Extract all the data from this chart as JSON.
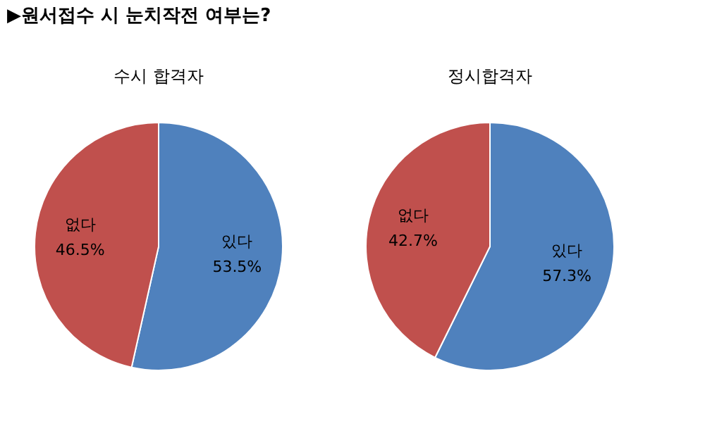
{
  "chart_data": [
    {
      "type": "pie",
      "title": "수시 합격자",
      "annotations": [
        "▶원서접수 시 눈치작전 여부는?"
      ],
      "categories": [
        "있다",
        "없다"
      ],
      "values": [
        53.5,
        46.5
      ],
      "colors": [
        "#4f81bd",
        "#c0504d"
      ],
      "value_labels": [
        "53.5%",
        "46.5%"
      ],
      "legend": false
    },
    {
      "type": "pie",
      "title": "정시합격자",
      "categories": [
        "있다",
        "없다"
      ],
      "values": [
        57.3,
        42.7
      ],
      "colors": [
        "#4f81bd",
        "#c0504d"
      ],
      "value_labels": [
        "57.3%",
        "42.7%"
      ],
      "legend": false
    }
  ]
}
